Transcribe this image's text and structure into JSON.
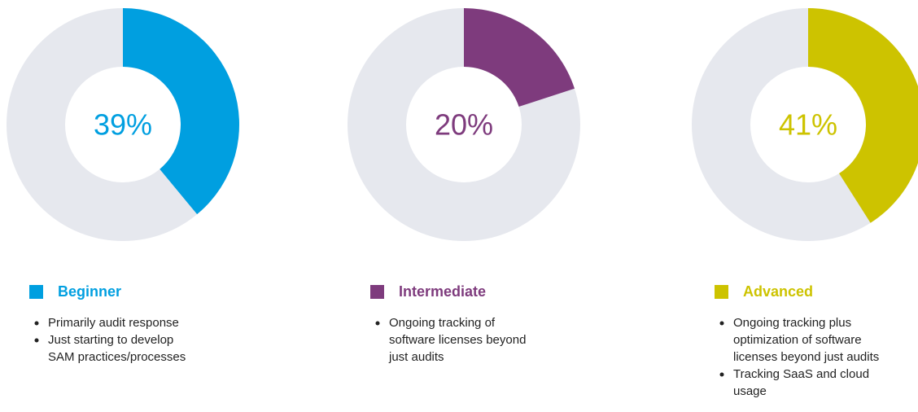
{
  "chart_data": [
    {
      "type": "pie",
      "categories": [
        "Beginner"
      ],
      "values": [
        39
      ],
      "value_labels": [
        "39%"
      ],
      "color": "#009fe0",
      "bullets": [
        [
          "Primarily audit response"
        ],
        [
          "Just starting to develop",
          "SAM practices/processes"
        ]
      ]
    },
    {
      "type": "pie",
      "categories": [
        "Intermediate"
      ],
      "values": [
        20
      ],
      "value_labels": [
        "20%"
      ],
      "color": "#7e3b7d",
      "bullets": [
        [
          "Ongoing tracking of",
          "software licenses beyond",
          "just audits"
        ]
      ]
    },
    {
      "type": "pie",
      "categories": [
        "Advanced"
      ],
      "values": [
        41
      ],
      "value_labels": [
        "41%"
      ],
      "color": "#cdc300",
      "bullets": [
        [
          "Ongoing tracking plus",
          "optimization of software",
          "licenses beyond just audits"
        ],
        [
          "Tracking SaaS and cloud",
          "usage"
        ]
      ]
    }
  ]
}
